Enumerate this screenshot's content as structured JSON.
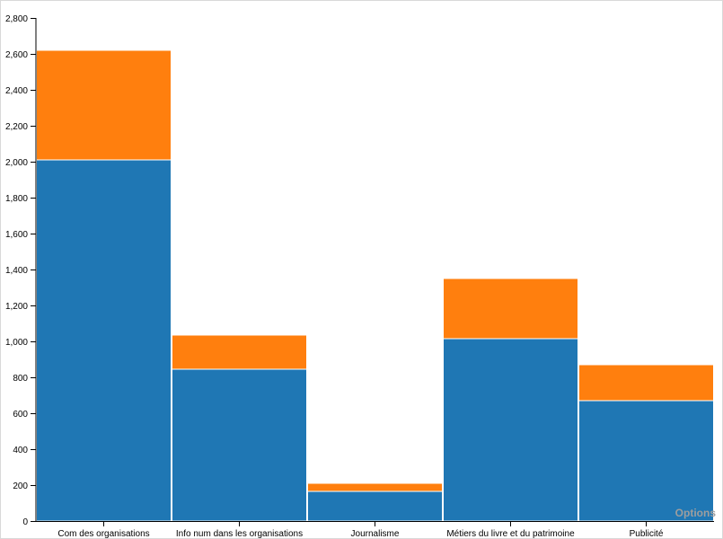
{
  "chart_data": {
    "type": "bar",
    "stacked": true,
    "categories": [
      "Com des organisations",
      "Info num dans les organisations",
      "Journalisme",
      "Métiers du livre et du patrimoine",
      "Publicité"
    ],
    "series": [
      {
        "values": [
          2010,
          845,
          165,
          1015,
          670
        ],
        "color": "#1f77b4"
      },
      {
        "values": [
          610,
          190,
          45,
          335,
          200
        ],
        "color": "#ff7f0e"
      }
    ],
    "ylim": [
      0,
      2800
    ],
    "yticks": [
      0,
      200,
      400,
      600,
      800,
      1000,
      1200,
      1400,
      1600,
      1800,
      2000,
      2200,
      2400,
      2600,
      2800
    ],
    "ytick_labels": [
      "0",
      "200",
      "400",
      "600",
      "800",
      "1,000",
      "1,200",
      "1,400",
      "1,600",
      "1,800",
      "2,000",
      "2,200",
      "2,400",
      "2,600",
      "2,800"
    ],
    "grid": false,
    "legend": "none"
  },
  "controls": {
    "options_label": "Options"
  }
}
